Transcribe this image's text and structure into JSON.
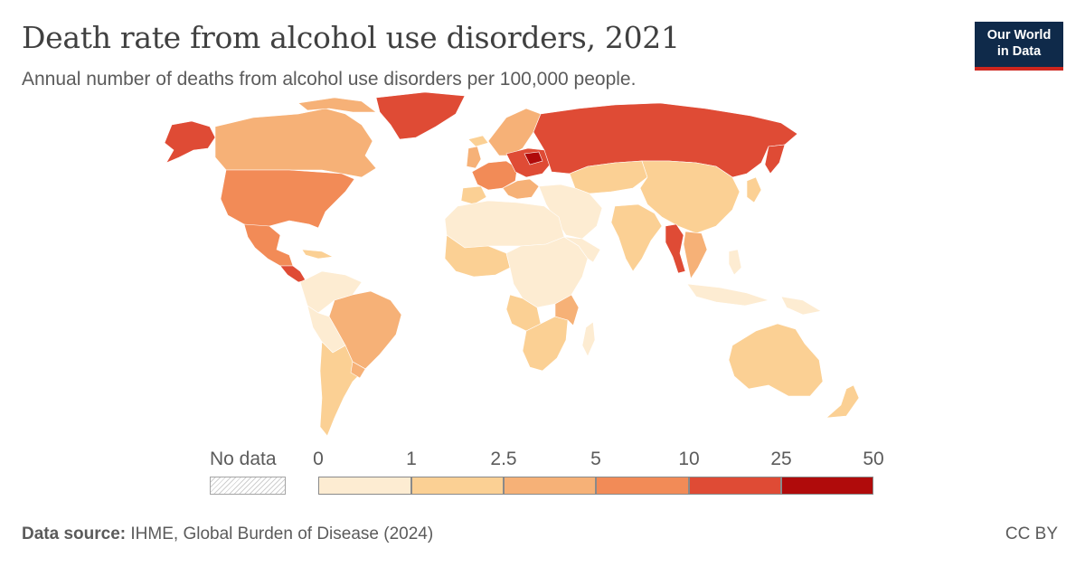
{
  "header": {
    "title": "Death rate from alcohol use disorders, 2021",
    "subtitle": "Annual number of deaths from alcohol use disorders per 100,000 people."
  },
  "logo": {
    "line1": "Our World",
    "line2": "in Data"
  },
  "legend": {
    "no_data_label": "No data",
    "bins": [
      {
        "from": "0",
        "to": "1",
        "color": "#fdecd2"
      },
      {
        "from": "1",
        "to": "2.5",
        "color": "#fbd094"
      },
      {
        "from": "2.5",
        "to": "5",
        "color": "#f6b177"
      },
      {
        "from": "5",
        "to": "10",
        "color": "#f28b57"
      },
      {
        "from": "10",
        "to": "25",
        "color": "#df4b35"
      },
      {
        "from": "25",
        "to": "50",
        "color": "#b00b0b"
      }
    ],
    "tick_labels": [
      "0",
      "1",
      "2.5",
      "5",
      "10",
      "25",
      "50"
    ]
  },
  "footer": {
    "source_label": "Data source:",
    "source_text": " IHME, Global Burden of Disease (2024)",
    "license": "CC BY"
  },
  "colors": {
    "bin_0_1": "#fdecd2",
    "bin_1_2_5": "#fbd094",
    "bin_2_5_5": "#f6b177",
    "bin_5_10": "#f28b57",
    "bin_10_25": "#df4b35",
    "bin_25_50": "#b00b0b"
  }
}
